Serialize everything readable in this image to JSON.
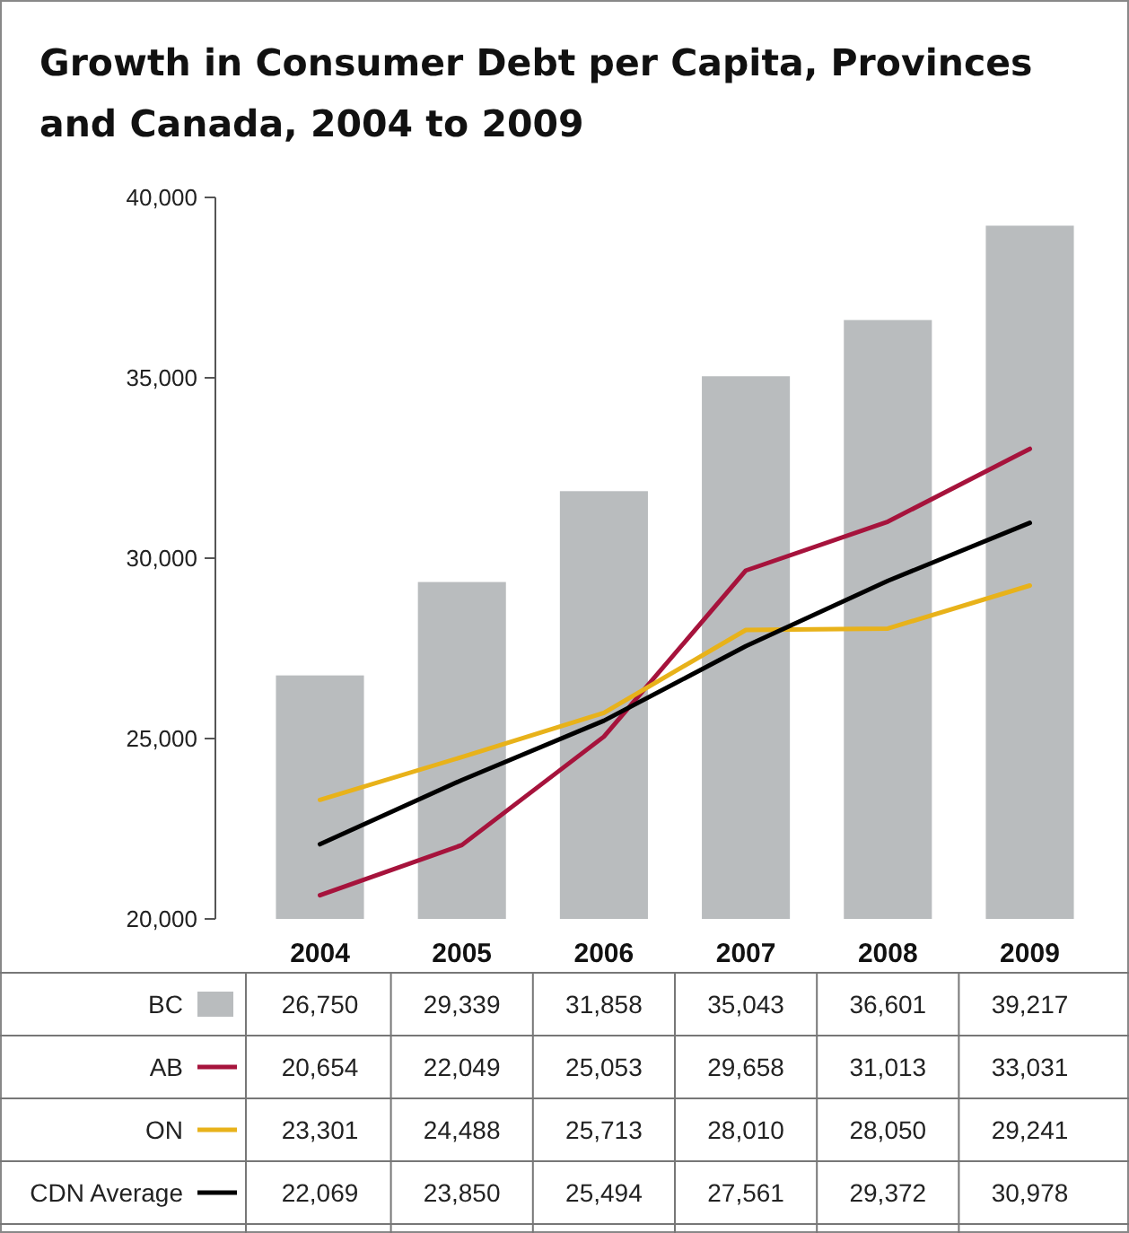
{
  "chart_data": {
    "type": "bar",
    "title": "Growth in Consumer Debt per Capita, Provinces and Canada, 2004 to 2009",
    "categories": [
      "2004",
      "2005",
      "2006",
      "2007",
      "2008",
      "2009"
    ],
    "series": [
      {
        "name": "BC",
        "color": "#b9bcbe",
        "values": [
          26750,
          29339,
          31858,
          35043,
          36601,
          39217
        ],
        "value_labels": [
          "26,750",
          "29,339",
          "31,858",
          "35,043",
          "36,601",
          "39,217"
        ]
      },
      {
        "name": "AB",
        "type": "line",
        "color": "#a6133c",
        "values": [
          20654,
          22049,
          25053,
          29658,
          31013,
          33031
        ],
        "value_labels": [
          "20,654",
          "22,049",
          "25,053",
          "29,658",
          "31,013",
          "33,031"
        ]
      },
      {
        "name": "ON",
        "type": "line",
        "color": "#e8b21a",
        "values": [
          23301,
          24488,
          25713,
          28010,
          28050,
          29241
        ],
        "value_labels": [
          "23,301",
          "24,488",
          "25,713",
          "28,010",
          "28,050",
          "29,241"
        ]
      },
      {
        "name": "CDN Average",
        "type": "line",
        "color": "#000000",
        "values": [
          22069,
          23850,
          25494,
          27561,
          29372,
          30978
        ],
        "value_labels": [
          "22,069",
          "23,850",
          "25,494",
          "27,561",
          "29,372",
          "30,978"
        ]
      }
    ],
    "ylim": [
      20000,
      40000
    ],
    "yticks": [
      {
        "value": 20000,
        "label": "20,000"
      },
      {
        "value": 25000,
        "label": "25,000"
      },
      {
        "value": 30000,
        "label": "30,000"
      },
      {
        "value": 35000,
        "label": "35,000"
      },
      {
        "value": 40000,
        "label": "40,000"
      }
    ],
    "grid": false,
    "legend": "bottom"
  }
}
